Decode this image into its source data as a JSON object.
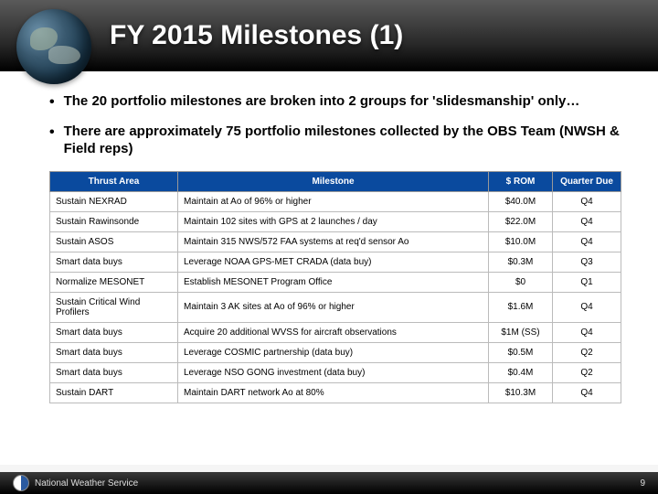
{
  "title": "FY 2015 Milestones (1)",
  "bullets": [
    "The 20 portfolio milestones are broken into 2 groups for 'slidesmanship' only…",
    "There are approximately 75 portfolio milestones collected by the OBS Team (NWSH & Field reps)"
  ],
  "table": {
    "header_bg": "#0a4a9e",
    "columns": [
      "Thrust Area",
      "Milestone",
      "$ ROM",
      "Quarter Due"
    ],
    "rows": [
      [
        "Sustain NEXRAD",
        "Maintain at Ao of 96% or higher",
        "$40.0M",
        "Q4"
      ],
      [
        "Sustain Rawinsonde",
        "Maintain 102 sites with GPS at 2 launches / day",
        "$22.0M",
        "Q4"
      ],
      [
        "Sustain ASOS",
        "Maintain 315 NWS/572 FAA systems at req'd sensor Ao",
        "$10.0M",
        "Q4"
      ],
      [
        "Smart data buys",
        "Leverage NOAA GPS-MET CRADA (data buy)",
        "$0.3M",
        "Q3"
      ],
      [
        "Normalize MESONET",
        "Establish MESONET Program Office",
        "$0",
        "Q1"
      ],
      [
        "Sustain Critical Wind Profilers",
        "Maintain 3 AK sites at Ao of 96% or higher",
        "$1.6M",
        "Q4"
      ],
      [
        "Smart data buys",
        "Acquire 20 additional WVSS for aircraft observations",
        "$1M (SS)",
        "Q4"
      ],
      [
        "Smart data buys",
        "Leverage COSMIC partnership (data buy)",
        "$0.5M",
        "Q2"
      ],
      [
        "Smart data buys",
        "Leverage NSO GONG investment (data buy)",
        "$0.4M",
        "Q2"
      ],
      [
        "Sustain DART",
        "Maintain DART network Ao at 80%",
        "$10.3M",
        "Q4"
      ]
    ]
  },
  "footer": {
    "org": "National Weather Service",
    "page_number": "9"
  }
}
